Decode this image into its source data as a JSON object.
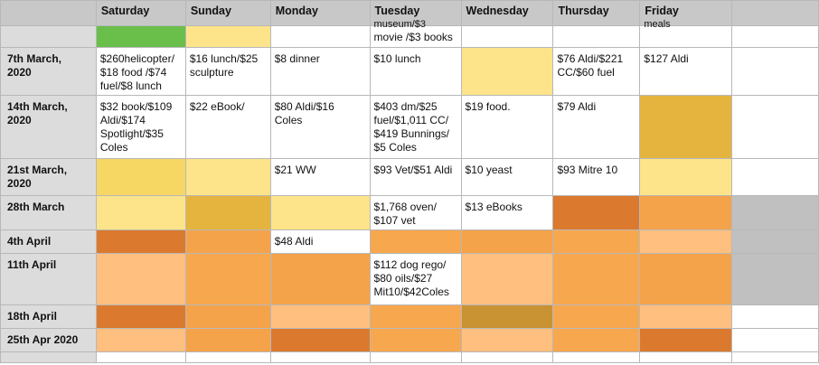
{
  "columns": [
    "Saturday",
    "Sunday",
    "Monday",
    "Tuesday",
    "Wednesday",
    "Thursday",
    "Friday"
  ],
  "colors": {
    "white": "#ffffff",
    "green": "#6abf4b",
    "pale_yellow": "#fde38a",
    "yellow": "#fbe07a",
    "gold": "#f6d763",
    "mustard": "#e5b43e",
    "peach": "#ffbf7f",
    "orange": "#f5a34b",
    "dark_orange": "#db7a2f",
    "olive_gold": "#c99233",
    "grey": "#c0c0c0",
    "header_grey": "#c8c8c8",
    "rowhdr_grey": "#dcdcdc"
  },
  "rows": [
    {
      "label": "",
      "cells": [
        {
          "text": "",
          "color": "#6abf4b"
        },
        {
          "text": "",
          "color": "#fde38a"
        },
        {
          "text": "",
          "color": "#ffffff"
        },
        {
          "text": "movie /$3 books",
          "clip": "museum/$3",
          "color": "#ffffff"
        },
        {
          "text": "",
          "color": "#ffffff"
        },
        {
          "text": "",
          "color": "#ffffff"
        },
        {
          "text": "",
          "clip": "meals",
          "color": "#ffffff"
        },
        {
          "text": "",
          "color": "#ffffff"
        }
      ]
    },
    {
      "label": "7th March,\n2020",
      "cells": [
        {
          "text": "$260helicopter/\n$18 food /$74\nfuel/$8 lunch",
          "color": "#ffffff"
        },
        {
          "text": "$16 lunch/$25\nsculpture",
          "color": "#ffffff"
        },
        {
          "text": "$8 dinner",
          "color": "#ffffff"
        },
        {
          "text": "$10 lunch",
          "color": "#ffffff"
        },
        {
          "text": "",
          "color": "#fde38a"
        },
        {
          "text": "$76 Aldi/$221\nCC/$60 fuel",
          "color": "#ffffff"
        },
        {
          "text": "$127 Aldi",
          "color": "#ffffff"
        },
        {
          "text": "",
          "color": "#ffffff"
        }
      ]
    },
    {
      "label": "14th March,\n2020",
      "cells": [
        {
          "text": "$32 book/$109\nAldi/$174\nSpotlight/$35\nColes",
          "color": "#ffffff"
        },
        {
          "text": "$22 eBook/",
          "color": "#ffffff"
        },
        {
          "text": "$80 Aldi/$16\nColes",
          "color": "#ffffff"
        },
        {
          "text": "$403 dm/$25\nfuel/$1,011 CC/\n$419 Bunnings/\n$5 Coles",
          "color": "#ffffff"
        },
        {
          "text": "$19 food.",
          "color": "#ffffff"
        },
        {
          "text": "$79 Aldi",
          "color": "#ffffff"
        },
        {
          "text": "",
          "color": "#e5b43e"
        },
        {
          "text": "",
          "color": "#ffffff"
        }
      ]
    },
    {
      "label": "21st March,\n2020",
      "cells": [
        {
          "text": "",
          "color": "#f6d763"
        },
        {
          "text": "",
          "color": "#fde38a"
        },
        {
          "text": "$21 WW",
          "color": "#ffffff"
        },
        {
          "text": "$93 Vet/$51 Aldi",
          "color": "#ffffff"
        },
        {
          "text": "$10 yeast",
          "color": "#ffffff"
        },
        {
          "text": "$93 Mitre 10",
          "color": "#ffffff"
        },
        {
          "text": "",
          "color": "#fde38a"
        },
        {
          "text": "",
          "color": "#ffffff"
        }
      ]
    },
    {
      "label": "28th March",
      "cells": [
        {
          "text": "",
          "color": "#fde38a"
        },
        {
          "text": "",
          "color": "#e5b43e"
        },
        {
          "text": "",
          "color": "#fde38a"
        },
        {
          "text": "$1,768 oven/\n$107 vet",
          "color": "#ffffff"
        },
        {
          "text": "$13 eBooks",
          "color": "#ffffff"
        },
        {
          "text": "",
          "color": "#db7a2f"
        },
        {
          "text": "",
          "color": "#f5a34b"
        },
        {
          "text": "",
          "color": "#c0c0c0"
        }
      ]
    },
    {
      "label": "4th April",
      "cells": [
        {
          "text": "",
          "color": "#db7a2f"
        },
        {
          "text": "",
          "color": "#f5a34b"
        },
        {
          "text": "$48 Aldi",
          "color": "#ffffff"
        },
        {
          "text": "",
          "color": "#f7a74e"
        },
        {
          "text": "",
          "color": "#f5a34b"
        },
        {
          "text": "",
          "color": "#f7a74e"
        },
        {
          "text": "",
          "color": "#ffbf7f"
        },
        {
          "text": "",
          "color": "#c0c0c0"
        }
      ]
    },
    {
      "label": "11th April",
      "cells": [
        {
          "text": "",
          "color": "#ffbf7f"
        },
        {
          "text": "",
          "color": "#f7a74e"
        },
        {
          "text": "",
          "color": "#f5a34b"
        },
        {
          "text": "$112 dog rego/\n$80 oils/$27\nMit10/$42Coles",
          "color": "#ffffff"
        },
        {
          "text": "",
          "color": "#ffbf7f"
        },
        {
          "text": "",
          "color": "#f7a74e"
        },
        {
          "text": "",
          "color": "#f5a34b"
        },
        {
          "text": "",
          "color": "#c0c0c0"
        }
      ]
    },
    {
      "label": "18th April",
      "cells": [
        {
          "text": "",
          "color": "#db7a2f"
        },
        {
          "text": "",
          "color": "#f5a34b"
        },
        {
          "text": "",
          "color": "#ffbf7f"
        },
        {
          "text": "",
          "color": "#f7a74e"
        },
        {
          "text": "",
          "color": "#c99233"
        },
        {
          "text": "",
          "color": "#f7a74e"
        },
        {
          "text": "",
          "color": "#ffbf7f"
        },
        {
          "text": "",
          "color": "#ffffff"
        }
      ]
    },
    {
      "label": "25th Apr 2020",
      "cells": [
        {
          "text": "",
          "color": "#ffbf7f"
        },
        {
          "text": "",
          "color": "#f5a34b"
        },
        {
          "text": "",
          "color": "#db7a2f"
        },
        {
          "text": "",
          "color": "#f7a74e"
        },
        {
          "text": "",
          "color": "#ffbf7f"
        },
        {
          "text": "",
          "color": "#f7a74e"
        },
        {
          "text": "",
          "color": "#db7a2f"
        },
        {
          "text": "",
          "color": "#ffffff"
        }
      ]
    },
    {
      "label": "",
      "cells": [
        {
          "text": "",
          "color": "#ffffff"
        },
        {
          "text": "",
          "color": "#ffffff"
        },
        {
          "text": "",
          "color": "#ffffff"
        },
        {
          "text": "",
          "color": "#ffffff"
        },
        {
          "text": "",
          "color": "#ffffff"
        },
        {
          "text": "",
          "color": "#ffffff"
        },
        {
          "text": "",
          "color": "#ffffff"
        },
        {
          "text": "",
          "color": "#ffffff"
        }
      ]
    }
  ]
}
